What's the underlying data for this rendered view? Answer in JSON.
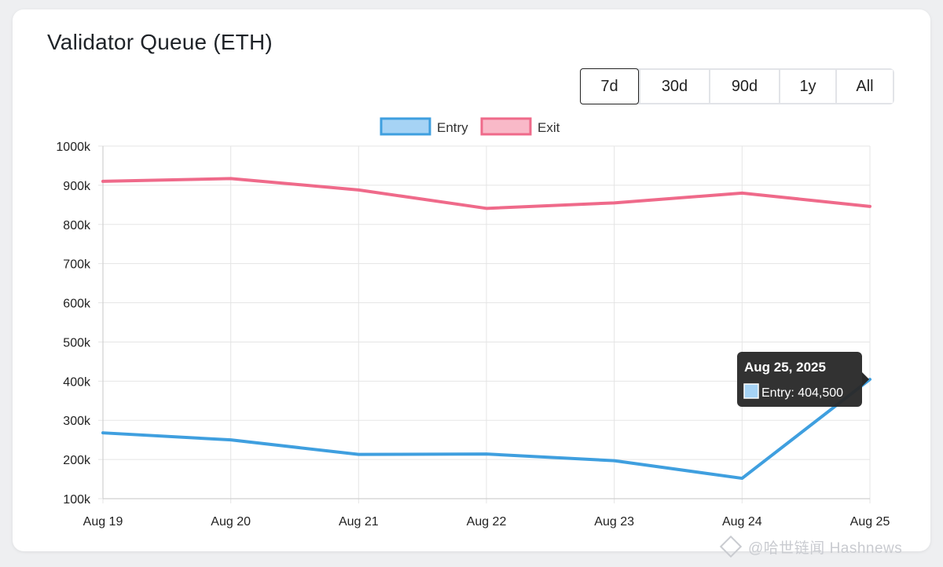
{
  "page": {
    "title": "Validator Queue (ETH)"
  },
  "range_buttons": [
    {
      "label": "7d",
      "active": true
    },
    {
      "label": "30d",
      "active": false
    },
    {
      "label": "90d",
      "active": false
    },
    {
      "label": "1y",
      "active": false
    },
    {
      "label": "All",
      "active": false
    }
  ],
  "tooltip": {
    "title": "Aug 25, 2025",
    "label": "Entry: 404,500"
  },
  "watermark": "@哈世链闻 Hashnews",
  "colors": {
    "entry": "#3f9fdf",
    "entry_fill": "#a6d3f5",
    "exit": "#ef6a8a",
    "exit_fill": "#f9b9c8",
    "grid": "#e5e5e5",
    "tooltip_bg": "#2a2a2a"
  },
  "chart_data": {
    "type": "line",
    "categories": [
      "Aug 19",
      "Aug 20",
      "Aug 21",
      "Aug 22",
      "Aug 23",
      "Aug 24",
      "Aug 25"
    ],
    "series": [
      {
        "name": "Entry",
        "values": [
          268000,
          250000,
          213000,
          214000,
          197000,
          152000,
          404500
        ]
      },
      {
        "name": "Exit",
        "values": [
          910000,
          917000,
          888000,
          841000,
          855000,
          880000,
          846000
        ]
      }
    ],
    "yticks": [
      "1000k",
      "900k",
      "800k",
      "700k",
      "600k",
      "500k",
      "400k",
      "300k",
      "200k",
      "100k"
    ],
    "ylim": [
      100000,
      1000000
    ],
    "grid": true,
    "legend": "top-center"
  }
}
